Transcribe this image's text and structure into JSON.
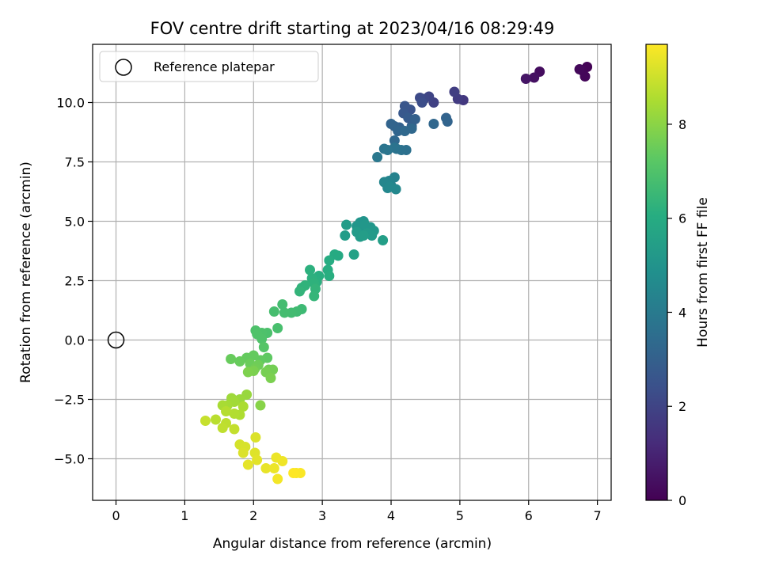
{
  "chart_data": {
    "type": "scatter",
    "title": "FOV centre drift starting at 2023/04/16 08:29:49",
    "xlabel": "Angular distance from reference (arcmin)",
    "ylabel": "Rotation from reference (arcmin)",
    "xlim": [
      -0.34,
      7.2
    ],
    "ylim": [
      -6.75,
      12.45
    ],
    "xticks": [
      0,
      1,
      2,
      3,
      4,
      5,
      6,
      7
    ],
    "xtick_labels": [
      "0",
      "1",
      "2",
      "3",
      "4",
      "5",
      "6",
      "7"
    ],
    "yticks": [
      -5.0,
      -2.5,
      0.0,
      2.5,
      5.0,
      7.5,
      10.0
    ],
    "ytick_labels": [
      "−5.0",
      "−2.5",
      "0.0",
      "2.5",
      "5.0",
      "7.5",
      "10.0"
    ],
    "grid": true,
    "legend": {
      "position": "top-left",
      "entries": [
        {
          "label": "Reference platepar",
          "marker": "open-circle"
        }
      ]
    },
    "reference_point": {
      "x": 0.0,
      "y": 0.0
    },
    "colormap": "viridis",
    "colorbar": {
      "label": "Hours from first FF file",
      "range": [
        0,
        9.7
      ],
      "ticks": [
        0,
        2,
        4,
        6,
        8
      ],
      "tick_labels": [
        "0",
        "2",
        "4",
        "6",
        "8"
      ]
    },
    "points": [
      [
        6.85,
        11.5,
        0.05
      ],
      [
        6.78,
        11.35,
        0.1
      ],
      [
        6.82,
        11.1,
        0.15
      ],
      [
        6.74,
        11.4,
        0.2
      ],
      [
        6.16,
        11.3,
        0.35
      ],
      [
        6.08,
        11.05,
        0.45
      ],
      [
        5.96,
        11.0,
        0.55
      ],
      [
        5.05,
        10.1,
        1.6
      ],
      [
        4.97,
        10.15,
        1.7
      ],
      [
        4.92,
        10.45,
        1.8
      ],
      [
        4.62,
        10.0,
        1.9
      ],
      [
        4.55,
        10.25,
        2.0
      ],
      [
        4.48,
        10.15,
        2.1
      ],
      [
        4.42,
        10.2,
        2.2
      ],
      [
        4.45,
        10.0,
        2.3
      ],
      [
        4.28,
        9.7,
        2.5
      ],
      [
        4.2,
        9.85,
        2.6
      ],
      [
        4.18,
        9.55,
        2.7
      ],
      [
        4.25,
        9.35,
        2.8
      ],
      [
        4.3,
        9.0,
        2.9
      ],
      [
        4.35,
        9.3,
        3.0
      ],
      [
        4.12,
        8.95,
        3.05
      ],
      [
        4.05,
        9.0,
        3.1
      ],
      [
        4.0,
        9.1,
        3.15
      ],
      [
        4.1,
        8.8,
        3.2
      ],
      [
        4.05,
        8.4,
        3.3
      ],
      [
        4.2,
        8.8,
        3.35
      ],
      [
        4.8,
        9.35,
        3.1
      ],
      [
        4.82,
        9.2,
        3.15
      ],
      [
        4.62,
        9.1,
        3.25
      ],
      [
        4.3,
        8.9,
        3.3
      ],
      [
        4.22,
        8.0,
        3.6
      ],
      [
        4.15,
        8.0,
        3.65
      ],
      [
        4.08,
        8.05,
        3.7
      ],
      [
        4.05,
        8.1,
        3.7
      ],
      [
        3.9,
        8.05,
        3.75
      ],
      [
        3.95,
        8.0,
        3.8
      ],
      [
        3.8,
        7.7,
        3.9
      ],
      [
        4.05,
        6.85,
        4.3
      ],
      [
        4.0,
        6.5,
        4.35
      ],
      [
        3.97,
        6.7,
        4.4
      ],
      [
        3.94,
        6.55,
        4.45
      ],
      [
        3.9,
        6.65,
        4.45
      ],
      [
        3.95,
        6.4,
        4.5
      ],
      [
        4.07,
        6.35,
        4.55
      ],
      [
        3.98,
        6.45,
        4.55
      ],
      [
        3.6,
        5.0,
        5.0
      ],
      [
        3.55,
        4.95,
        5.05
      ],
      [
        3.5,
        4.8,
        5.1
      ],
      [
        3.58,
        4.65,
        5.1
      ],
      [
        3.62,
        4.85,
        5.15
      ],
      [
        3.7,
        4.75,
        5.15
      ],
      [
        3.75,
        4.6,
        5.2
      ],
      [
        3.72,
        4.4,
        5.25
      ],
      [
        3.65,
        4.5,
        5.25
      ],
      [
        3.55,
        4.35,
        5.3
      ],
      [
        3.5,
        4.55,
        5.3
      ],
      [
        3.35,
        4.85,
        5.35
      ],
      [
        3.33,
        4.4,
        5.35
      ],
      [
        3.6,
        4.4,
        5.4
      ],
      [
        3.88,
        4.2,
        5.45
      ],
      [
        3.46,
        3.6,
        5.55
      ],
      [
        3.23,
        3.55,
        5.9
      ],
      [
        3.18,
        3.6,
        5.95
      ],
      [
        3.1,
        3.35,
        6.0
      ],
      [
        3.08,
        2.95,
        6.05
      ],
      [
        3.1,
        2.7,
        6.1
      ],
      [
        2.95,
        2.7,
        6.1
      ],
      [
        2.92,
        2.45,
        6.15
      ],
      [
        2.82,
        2.95,
        6.2
      ],
      [
        2.85,
        2.6,
        6.2
      ],
      [
        2.88,
        2.4,
        6.25
      ],
      [
        2.75,
        2.3,
        6.3
      ],
      [
        2.7,
        2.2,
        6.3
      ],
      [
        2.67,
        2.05,
        6.35
      ],
      [
        2.9,
        2.15,
        6.35
      ],
      [
        2.88,
        1.85,
        6.4
      ],
      [
        2.7,
        1.3,
        6.6
      ],
      [
        2.63,
        1.2,
        6.65
      ],
      [
        2.55,
        1.15,
        6.7
      ],
      [
        2.45,
        1.15,
        6.75
      ],
      [
        2.42,
        1.5,
        6.75
      ],
      [
        2.3,
        1.2,
        6.8
      ],
      [
        2.35,
        0.5,
        6.85
      ],
      [
        2.2,
        0.3,
        6.9
      ],
      [
        2.12,
        0.3,
        6.95
      ],
      [
        2.03,
        0.4,
        6.95
      ],
      [
        2.05,
        0.25,
        7.0
      ],
      [
        2.12,
        0.05,
        7.0
      ],
      [
        2.15,
        -0.3,
        7.1
      ],
      [
        2.2,
        -0.75,
        7.3
      ],
      [
        2.1,
        -0.85,
        7.35
      ],
      [
        2.0,
        -0.65,
        7.4
      ],
      [
        1.9,
        -0.75,
        7.4
      ],
      [
        1.8,
        -0.9,
        7.45
      ],
      [
        1.67,
        -0.8,
        7.45
      ],
      [
        1.95,
        -1.0,
        7.5
      ],
      [
        2.07,
        -1.05,
        7.55
      ],
      [
        2.02,
        -1.2,
        7.6
      ],
      [
        2.22,
        -1.25,
        7.6
      ],
      [
        2.28,
        -1.25,
        7.65
      ],
      [
        2.18,
        -1.35,
        7.7
      ],
      [
        2.0,
        -1.3,
        7.75
      ],
      [
        2.25,
        -1.6,
        7.75
      ],
      [
        1.92,
        -1.35,
        7.8
      ],
      [
        2.1,
        -2.75,
        7.95
      ],
      [
        1.9,
        -2.3,
        8.2
      ],
      [
        1.8,
        -2.5,
        8.25
      ],
      [
        1.68,
        -2.45,
        8.3
      ],
      [
        1.72,
        -2.6,
        8.35
      ],
      [
        1.62,
        -2.75,
        8.4
      ],
      [
        1.55,
        -2.75,
        8.45
      ],
      [
        1.85,
        -2.8,
        8.5
      ],
      [
        1.8,
        -3.15,
        8.55
      ],
      [
        1.72,
        -3.1,
        8.6
      ],
      [
        1.6,
        -3.0,
        8.65
      ],
      [
        1.45,
        -3.35,
        8.7
      ],
      [
        1.6,
        -3.5,
        8.75
      ],
      [
        1.55,
        -3.7,
        8.8
      ],
      [
        1.72,
        -3.75,
        8.85
      ],
      [
        1.3,
        -3.4,
        8.9
      ],
      [
        1.8,
        -4.4,
        9.1
      ],
      [
        1.88,
        -4.5,
        9.15
      ],
      [
        1.85,
        -4.75,
        9.2
      ],
      [
        2.03,
        -4.1,
        9.2
      ],
      [
        2.02,
        -4.75,
        9.25
      ],
      [
        2.05,
        -5.05,
        9.3
      ],
      [
        1.92,
        -5.25,
        9.35
      ],
      [
        2.18,
        -5.4,
        9.4
      ],
      [
        2.3,
        -5.4,
        9.45
      ],
      [
        2.33,
        -4.95,
        9.45
      ],
      [
        2.42,
        -5.1,
        9.5
      ],
      [
        2.35,
        -5.85,
        9.55
      ],
      [
        2.62,
        -5.6,
        9.6
      ],
      [
        2.68,
        -5.6,
        9.65
      ],
      [
        2.58,
        -5.6,
        9.7
      ]
    ]
  }
}
